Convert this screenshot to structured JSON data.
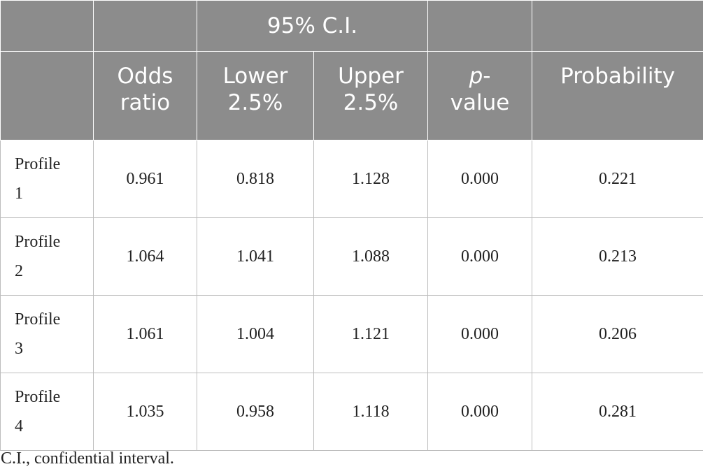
{
  "table": {
    "group_header": "95% C.I.",
    "columns": {
      "odds_ratio": [
        "Odds",
        "ratio"
      ],
      "lower": [
        "Lower",
        "2.5%"
      ],
      "upper": [
        "Upper",
        "2.5%"
      ],
      "pvalue": [
        "p",
        "-",
        "value"
      ],
      "probability": "Probability"
    },
    "rows": [
      {
        "label": [
          "Profile",
          "1"
        ],
        "odds": "0.961",
        "lower": "0.818",
        "upper": "1.128",
        "p": "0.000",
        "prob": "0.221"
      },
      {
        "label": [
          "Profile",
          "2"
        ],
        "odds": "1.064",
        "lower": "1.041",
        "upper": "1.088",
        "p": "0.000",
        "prob": "0.213"
      },
      {
        "label": [
          "Profile",
          "3"
        ],
        "odds": "1.061",
        "lower": "1.004",
        "upper": "1.121",
        "p": "0.000",
        "prob": "0.206"
      },
      {
        "label": [
          "Profile",
          "4"
        ],
        "odds": "1.035",
        "lower": "0.958",
        "upper": "1.118",
        "p": "0.000",
        "prob": "0.281"
      }
    ]
  },
  "footnote": "C.I., confidential interval.",
  "colors": {
    "header_bg": "#8c8c8c",
    "header_text": "#ffffff",
    "border": "#bdbdbd"
  }
}
